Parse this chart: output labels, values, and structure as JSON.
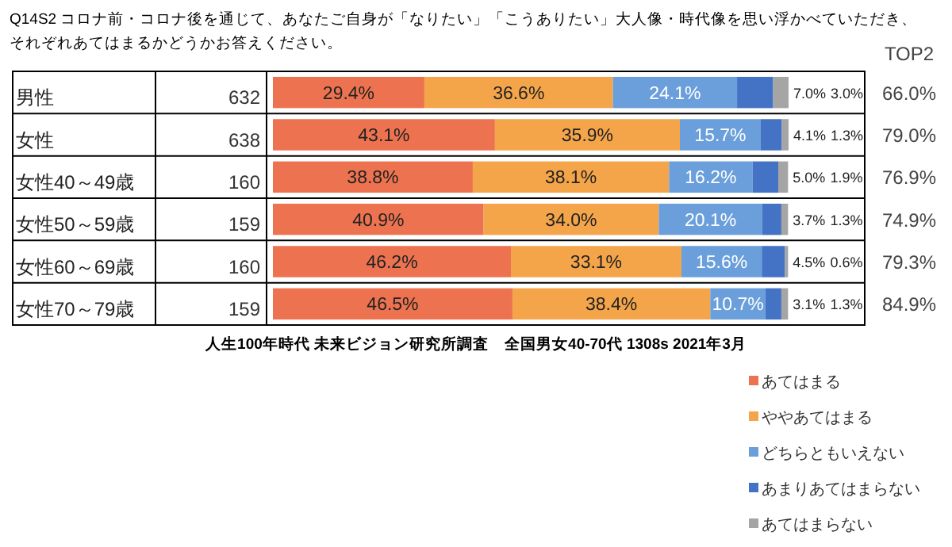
{
  "chart_data": {
    "type": "bar",
    "orientation": "horizontal",
    "stacked": true,
    "title": "Q14S2 コロナ前・コロナ後を通じて、あなたご自身が「なりたい」「こうありたい」大人像・時代像を思い浮かべていただき、それぞれあてはまるかどうかお答えください。",
    "categories": [
      "男性",
      "女性",
      "女性40～49歳",
      "女性50～59歳",
      "女性60～69歳",
      "女性70～79歳"
    ],
    "series": [
      {
        "name": "あてはまる",
        "color": "#ed7350",
        "values": [
          29.4,
          43.1,
          38.8,
          40.9,
          46.2,
          46.5
        ],
        "value_labels": [
          "29.4%",
          "43.1%",
          "38.8%",
          "40.9%",
          "46.2%",
          "46.5%"
        ]
      },
      {
        "name": "ややあてはまる",
        "color": "#f4a54a",
        "values": [
          36.6,
          35.9,
          38.1,
          34.0,
          33.1,
          38.4
        ],
        "value_labels": [
          "36.6%",
          "35.9%",
          "38.1%",
          "34.0%",
          "33.1%",
          "38.4%"
        ]
      },
      {
        "name": "どちらともいえない",
        "color": "#6a9fdb",
        "values": [
          24.1,
          15.7,
          16.2,
          20.1,
          15.6,
          10.7
        ],
        "value_labels": [
          "24.1%",
          "15.7%",
          "16.2%",
          "20.1%",
          "15.6%",
          "10.7%"
        ]
      },
      {
        "name": "あまりあてはまらない",
        "color": "#4472c4",
        "values": [
          7.0,
          4.1,
          5.0,
          3.7,
          4.5,
          3.1
        ],
        "value_labels": [
          "7.0%",
          "4.1%",
          "5.0%",
          "3.7%",
          "4.5%",
          "3.1%"
        ]
      },
      {
        "name": "あてはまらない",
        "color": "#a5a5a5",
        "values": [
          3.0,
          1.3,
          1.9,
          1.3,
          0.6,
          1.3
        ],
        "value_labels": [
          "3.0%",
          "1.3%",
          "1.9%",
          "1.3%",
          "0.6%",
          "1.3%"
        ]
      }
    ],
    "legend": "bottom right",
    "annotations": [
      "632",
      "638",
      "160",
      "159",
      "160",
      "159",
      "TOP2",
      "66.0%",
      "79.0%",
      "76.9%",
      "74.9%",
      "79.3%",
      "84.9%",
      "人生100年時代 未来ビジョン研究所調査　全国男女40-70代 1308s  2021年3月"
    ]
  }
}
